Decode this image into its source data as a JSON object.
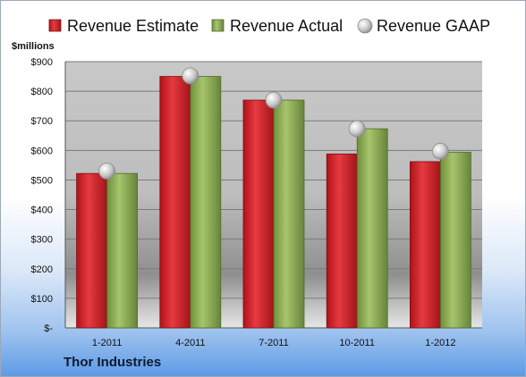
{
  "chart_data": {
    "type": "bar",
    "unit_label": "$millions",
    "categories": [
      "1-2011",
      "4-2011",
      "7-2011",
      "10-2011",
      "1-2012"
    ],
    "series": [
      {
        "name": "Revenue Estimate",
        "kind": "bar",
        "color": "#d42027",
        "values": [
          522,
          850,
          770,
          588,
          562
        ]
      },
      {
        "name": "Revenue Actual",
        "kind": "bar",
        "color": "#8fb05a",
        "values": [
          522,
          850,
          770,
          673,
          594
        ]
      },
      {
        "name": "Revenue GAAP",
        "kind": "marker",
        "color": "#c8c8c8",
        "values": [
          530,
          852,
          770,
          673,
          597
        ]
      }
    ],
    "y_ticks": [
      "$-",
      "$100",
      "$200",
      "$300",
      "$400",
      "$500",
      "$600",
      "$700",
      "$800",
      "$900"
    ],
    "ylim": [
      0,
      900
    ],
    "legend_position": "top",
    "grid": true
  },
  "company": "Thor Industries"
}
